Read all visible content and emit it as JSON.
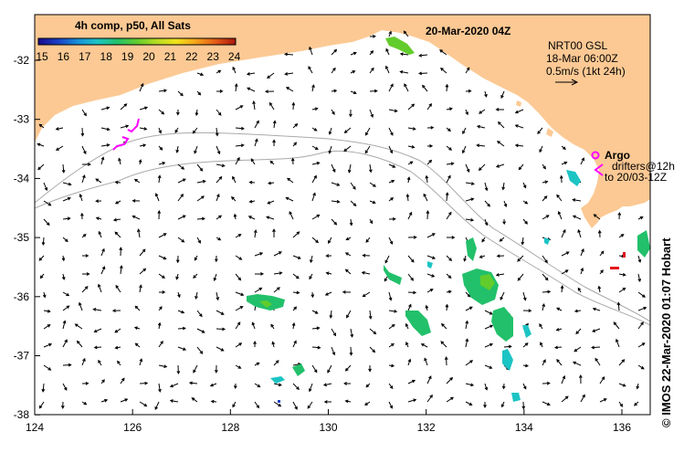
{
  "header": {
    "date": "20-Mar-2020 04Z",
    "colorbar_title": "4h comp, p50, All Sats",
    "colorbar_ticks": [
      "15",
      "16",
      "17",
      "18",
      "19",
      "20",
      "21",
      "22",
      "23",
      "24"
    ]
  },
  "info": {
    "line1": "NRT00 GSL",
    "line2": "18-Mar 06:00Z",
    "line3": "0.5m/s (1kt 24h)"
  },
  "argo": {
    "title": "Argo",
    "line1": "drifters@12h",
    "line2": "to 20/03-12Z"
  },
  "side_label": "© IMOS 22-Mar-2020 01:07 Hobart",
  "axes": {
    "x_ticks": [
      "124",
      "126",
      "128",
      "130",
      "132",
      "134",
      "136"
    ],
    "y_ticks": [
      "-32",
      "-33",
      "-34",
      "-35",
      "-36",
      "-37",
      "-38"
    ]
  },
  "colors": {
    "land": "#fcc994",
    "colorbar": [
      "#1a0b8c",
      "#1a3fc4",
      "#1890d8",
      "#1cc4c4",
      "#22c06a",
      "#62cc2c",
      "#b6dc24",
      "#f2e21a",
      "#f4a21a",
      "#e25a16",
      "#a8160e"
    ],
    "argo": "#ff00ff"
  }
}
